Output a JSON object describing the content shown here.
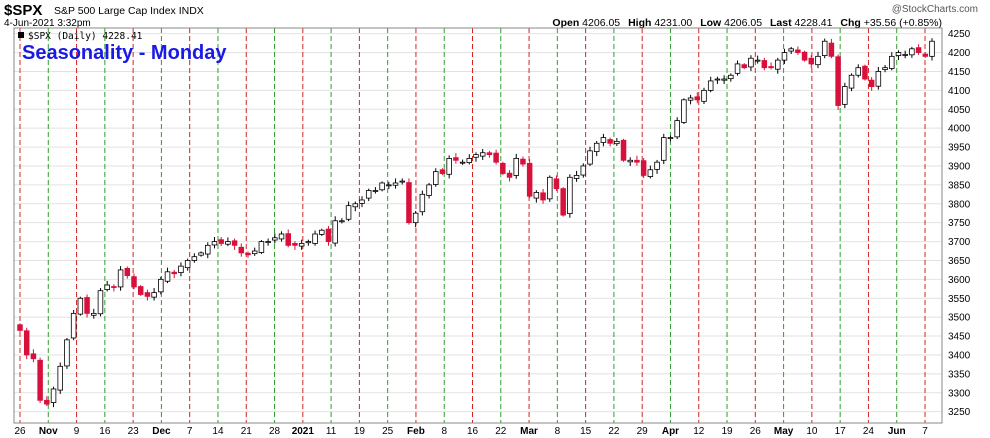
{
  "header": {
    "symbol": "$SPX",
    "description": "S&P 500 Large Cap Index INDX",
    "date": "4-Jun-2021 3:32pm",
    "copyright": "@StockCharts.com",
    "open_label": "Open",
    "open": "4206.05",
    "high_label": "High",
    "high": "4231.00",
    "low_label": "Low",
    "low": "4206.05",
    "last_label": "Last",
    "last": "4228.41",
    "chg_label": "Chg",
    "chg": "+35.56 (+0.85%)"
  },
  "legend": {
    "text": "$SPX (Daily) 4228.41",
    "annotation": "Seasonality - Monday"
  },
  "colors": {
    "up": "#000000",
    "down": "#d8103c",
    "green_line": "#2e9e2e",
    "red_line": "#d82020",
    "grid": "#e2e2e2",
    "annotation": "#1a1ae6"
  },
  "chart_data": {
    "type": "candlestick",
    "y_range": [
      3220,
      4265
    ],
    "y_ticks": [
      3250,
      3300,
      3350,
      3400,
      3450,
      3500,
      3550,
      3600,
      3650,
      3700,
      3750,
      3800,
      3850,
      3900,
      3950,
      4000,
      4050,
      4100,
      4150,
      4200,
      4250
    ],
    "x_ticks": [
      {
        "label": "26",
        "major": false
      },
      {
        "label": "Nov",
        "major": true
      },
      {
        "label": "9",
        "major": false
      },
      {
        "label": "16",
        "major": false
      },
      {
        "label": "23",
        "major": false
      },
      {
        "label": "Dec",
        "major": true
      },
      {
        "label": "7",
        "major": false
      },
      {
        "label": "14",
        "major": false
      },
      {
        "label": "21",
        "major": false
      },
      {
        "label": "28",
        "major": false
      },
      {
        "label": "2021",
        "major": true
      },
      {
        "label": "11",
        "major": false
      },
      {
        "label": "19",
        "major": false
      },
      {
        "label": "25",
        "major": false
      },
      {
        "label": "Feb",
        "major": true
      },
      {
        "label": "8",
        "major": false
      },
      {
        "label": "16",
        "major": false
      },
      {
        "label": "22",
        "major": false
      },
      {
        "label": "Mar",
        "major": true
      },
      {
        "label": "8",
        "major": false
      },
      {
        "label": "15",
        "major": false
      },
      {
        "label": "22",
        "major": false
      },
      {
        "label": "29",
        "major": false
      },
      {
        "label": "Apr",
        "major": true
      },
      {
        "label": "12",
        "major": false
      },
      {
        "label": "19",
        "major": false
      },
      {
        "label": "26",
        "major": false
      },
      {
        "label": "May",
        "major": true
      },
      {
        "label": "10",
        "major": false
      },
      {
        "label": "17",
        "major": false
      },
      {
        "label": "24",
        "major": false
      },
      {
        "label": "Jun",
        "major": true
      },
      {
        "label": "7",
        "major": false
      }
    ],
    "closes": [
      3465,
      3400,
      3390,
      3280,
      3270,
      3310,
      3370,
      3440,
      3510,
      3550,
      3510,
      3510,
      3570,
      3585,
      3580,
      3625,
      3610,
      3580,
      3560,
      3555,
      3565,
      3600,
      3620,
      3615,
      3635,
      3650,
      3660,
      3670,
      3690,
      3700,
      3695,
      3700,
      3690,
      3670,
      3665,
      3675,
      3700,
      3700,
      3710,
      3720,
      3690,
      3690,
      3695,
      3700,
      3720,
      3730,
      3700,
      3755,
      3755,
      3795,
      3800,
      3810,
      3835,
      3835,
      3855,
      3850,
      3855,
      3860,
      3750,
      3775,
      3825,
      3850,
      3885,
      3880,
      3920,
      3915,
      3910,
      3920,
      3930,
      3935,
      3930,
      3910,
      3880,
      3870,
      3920,
      3905,
      3820,
      3830,
      3810,
      3870,
      3840,
      3770,
      3870,
      3875,
      3900,
      3940,
      3960,
      3975,
      3960,
      3965,
      3915,
      3915,
      3910,
      3875,
      3890,
      3910,
      3975,
      3975,
      4020,
      4075,
      4080,
      4075,
      4100,
      4125,
      4130,
      4130,
      4140,
      4170,
      4160,
      4185,
      4180,
      4160,
      4160,
      4180,
      4200,
      4210,
      4200,
      4180,
      4170,
      4190,
      4230,
      4190,
      4060,
      4110,
      4140,
      4160,
      4130,
      4110,
      4150,
      4160,
      4190,
      4200,
      4195,
      4210,
      4200,
      4190,
      4230
    ],
    "mondays": [
      "26",
      "Nov 2",
      "9",
      "16",
      "23",
      "Nov 30",
      "Dec 7",
      "14",
      "21",
      "28",
      "Jan 4",
      "11",
      "18",
      "25",
      "Feb 1",
      "8",
      "15",
      "22",
      "Mar 1",
      "8",
      "15",
      "22",
      "29",
      "Apr 5",
      "12",
      "19",
      "26",
      "May 3",
      "10",
      "17",
      "24",
      "May 31",
      "Jun 7"
    ]
  }
}
